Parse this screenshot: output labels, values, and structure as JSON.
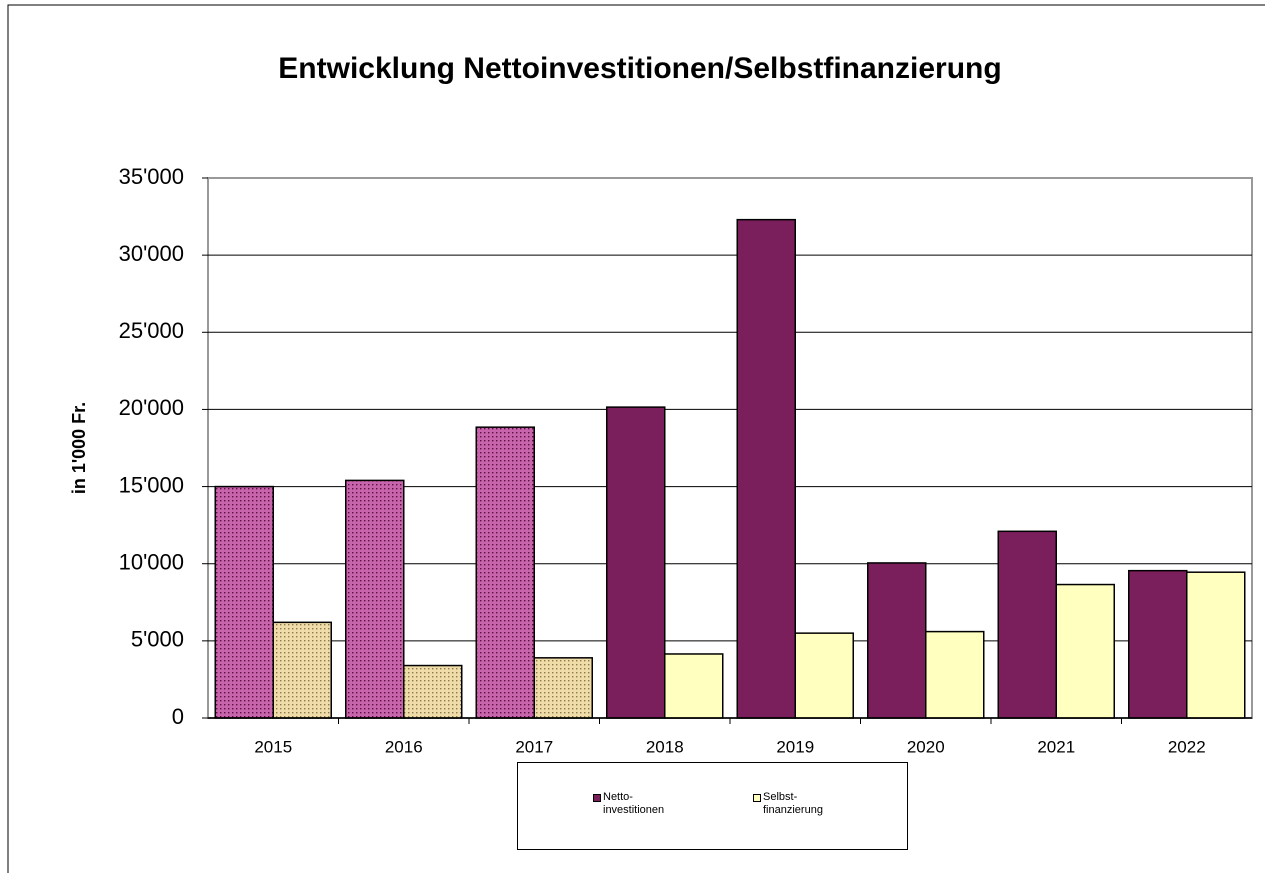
{
  "chart_data": {
    "type": "bar",
    "title": "Entwicklung Nettoinvestitionen/Selbstfinanzierung",
    "y_label": "in 1'000 Fr.",
    "categories": [
      "2015",
      "2016",
      "2017",
      "2018",
      "2019",
      "2020",
      "2021",
      "2022"
    ],
    "series": [
      {
        "name": "Netto-\ninvestitionen",
        "color": "#7b1f5c",
        "dotted_color": "#c864ac",
        "values": [
          15000,
          15400,
          18850,
          20150,
          32300,
          10050,
          12100,
          9550
        ]
      },
      {
        "name": "Selbst-\nfinanzierung",
        "color": "#ffffc0",
        "dotted_color": "#efdca8",
        "values": [
          6200,
          3400,
          3900,
          4150,
          5500,
          5600,
          8650,
          9450
        ]
      }
    ],
    "dotted": [
      true,
      true,
      true,
      false,
      false,
      false,
      false,
      false
    ],
    "ylim": [
      0,
      35000
    ],
    "yticks": [
      0,
      {
        "value": 5000,
        "label": "5'000"
      },
      {
        "value": 10000,
        "label": "10'000"
      },
      {
        "value": 15000,
        "label": "15'000"
      },
      {
        "value": 20000,
        "label": "20'000"
      },
      {
        "value": 25000,
        "label": "25'000"
      },
      {
        "value": 30000,
        "label": "30'000"
      },
      {
        "value": 35000,
        "label": "35'000"
      }
    ],
    "grid": true
  }
}
